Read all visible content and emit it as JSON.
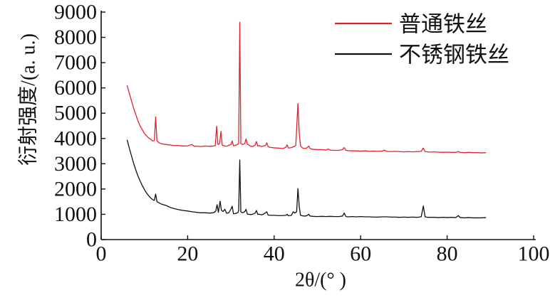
{
  "chart_data": {
    "type": "line",
    "xlabel": "2θ/(° )",
    "ylabel": "衍射强度/(a. u.)",
    "xlim": [
      0,
      100
    ],
    "ylim": [
      0,
      9000
    ],
    "xticks": [
      0,
      20,
      40,
      60,
      80,
      100
    ],
    "yticks": [
      0,
      1000,
      2000,
      3000,
      4000,
      5000,
      6000,
      7000,
      8000,
      9000
    ],
    "grid": false,
    "legend": "top-right",
    "series": [
      {
        "name": "普通铁丝",
        "color": "#e3222c",
        "points": [
          [
            6.0,
            6100
          ],
          [
            6.5,
            5800
          ],
          [
            7.0,
            5500
          ],
          [
            7.5,
            5200
          ],
          [
            8.0,
            4950
          ],
          [
            8.5,
            4700
          ],
          [
            9.0,
            4500
          ],
          [
            9.5,
            4350
          ],
          [
            10.0,
            4200
          ],
          [
            10.5,
            4100
          ],
          [
            11.0,
            4020
          ],
          [
            11.5,
            3960
          ],
          [
            12.0,
            3900
          ],
          [
            12.3,
            3920
          ],
          [
            12.6,
            4850
          ],
          [
            12.9,
            3900
          ],
          [
            13.5,
            3820
          ],
          [
            14.0,
            3790
          ],
          [
            15.0,
            3760
          ],
          [
            16.0,
            3740
          ],
          [
            17.0,
            3720
          ],
          [
            18.0,
            3720
          ],
          [
            19.0,
            3700
          ],
          [
            20.0,
            3710
          ],
          [
            21.0,
            3760
          ],
          [
            21.5,
            3690
          ],
          [
            22.0,
            3700
          ],
          [
            23.0,
            3680
          ],
          [
            24.0,
            3700
          ],
          [
            25.0,
            3690
          ],
          [
            26.0,
            3700
          ],
          [
            26.4,
            3720
          ],
          [
            26.7,
            4480
          ],
          [
            27.0,
            3760
          ],
          [
            27.4,
            3800
          ],
          [
            27.7,
            4280
          ],
          [
            28.0,
            3730
          ],
          [
            28.5,
            3710
          ],
          [
            29.0,
            3690
          ],
          [
            29.5,
            3730
          ],
          [
            30.0,
            3760
          ],
          [
            30.3,
            3900
          ],
          [
            30.6,
            3710
          ],
          [
            31.0,
            3730
          ],
          [
            31.5,
            3760
          ],
          [
            31.8,
            3800
          ],
          [
            32.05,
            8600
          ],
          [
            32.3,
            3800
          ],
          [
            32.7,
            3760
          ],
          [
            33.2,
            3800
          ],
          [
            33.5,
            3980
          ],
          [
            33.8,
            3780
          ],
          [
            34.5,
            3700
          ],
          [
            35.0,
            3680
          ],
          [
            35.6,
            3740
          ],
          [
            35.9,
            3880
          ],
          [
            36.2,
            3700
          ],
          [
            36.6,
            3720
          ],
          [
            37.0,
            3680
          ],
          [
            37.5,
            3700
          ],
          [
            38.0,
            3720
          ],
          [
            38.3,
            3830
          ],
          [
            38.6,
            3680
          ],
          [
            39.0,
            3650
          ],
          [
            40.0,
            3630
          ],
          [
            41.0,
            3620
          ],
          [
            42.0,
            3600
          ],
          [
            42.7,
            3650
          ],
          [
            43.0,
            3750
          ],
          [
            43.3,
            3620
          ],
          [
            44.0,
            3640
          ],
          [
            44.6,
            3680
          ],
          [
            45.0,
            3720
          ],
          [
            45.5,
            5380
          ],
          [
            45.8,
            4200
          ],
          [
            46.1,
            3700
          ],
          [
            46.6,
            3620
          ],
          [
            47.0,
            3600
          ],
          [
            47.5,
            3620
          ],
          [
            48.0,
            3700
          ],
          [
            48.3,
            3600
          ],
          [
            49.0,
            3570
          ],
          [
            50.0,
            3560
          ],
          [
            51.0,
            3560
          ],
          [
            52.0,
            3540
          ],
          [
            52.5,
            3580
          ],
          [
            53.0,
            3540
          ],
          [
            54.0,
            3530
          ],
          [
            55.0,
            3530
          ],
          [
            55.8,
            3560
          ],
          [
            56.2,
            3640
          ],
          [
            56.6,
            3530
          ],
          [
            57.0,
            3520
          ],
          [
            58.0,
            3510
          ],
          [
            59.0,
            3510
          ],
          [
            60.0,
            3500
          ],
          [
            61.0,
            3510
          ],
          [
            62.0,
            3490
          ],
          [
            63.0,
            3500
          ],
          [
            64.0,
            3490
          ],
          [
            65.0,
            3500
          ],
          [
            65.5,
            3540
          ],
          [
            66.0,
            3490
          ],
          [
            67.0,
            3480
          ],
          [
            68.0,
            3490
          ],
          [
            69.0,
            3480
          ],
          [
            70.0,
            3470
          ],
          [
            71.0,
            3480
          ],
          [
            72.0,
            3470
          ],
          [
            73.0,
            3480
          ],
          [
            74.0,
            3490
          ],
          [
            74.5,
            3620
          ],
          [
            74.9,
            3480
          ],
          [
            75.5,
            3470
          ],
          [
            76.0,
            3460
          ],
          [
            77.0,
            3470
          ],
          [
            78.0,
            3460
          ],
          [
            79.0,
            3450
          ],
          [
            80.0,
            3460
          ],
          [
            81.0,
            3450
          ],
          [
            82.0,
            3450
          ],
          [
            82.6,
            3480
          ],
          [
            83.0,
            3450
          ],
          [
            84.0,
            3440
          ],
          [
            85.0,
            3450
          ],
          [
            86.0,
            3440
          ],
          [
            87.0,
            3440
          ],
          [
            88.0,
            3430
          ],
          [
            89.0,
            3440
          ]
        ]
      },
      {
        "name": "不锈钢铁丝",
        "color": "#111111",
        "points": [
          [
            6.0,
            3950
          ],
          [
            6.5,
            3620
          ],
          [
            7.0,
            3320
          ],
          [
            7.5,
            3020
          ],
          [
            8.0,
            2760
          ],
          [
            8.5,
            2520
          ],
          [
            9.0,
            2320
          ],
          [
            9.5,
            2140
          ],
          [
            10.0,
            1980
          ],
          [
            10.5,
            1840
          ],
          [
            11.0,
            1730
          ],
          [
            11.5,
            1640
          ],
          [
            12.0,
            1570
          ],
          [
            12.3,
            1550
          ],
          [
            12.6,
            1800
          ],
          [
            12.9,
            1500
          ],
          [
            13.5,
            1440
          ],
          [
            14.0,
            1400
          ],
          [
            15.0,
            1350
          ],
          [
            16.0,
            1270
          ],
          [
            17.0,
            1220
          ],
          [
            18.0,
            1180
          ],
          [
            19.0,
            1150
          ],
          [
            20.0,
            1130
          ],
          [
            21.0,
            1100
          ],
          [
            22.0,
            1080
          ],
          [
            23.0,
            1060
          ],
          [
            24.0,
            1060
          ],
          [
            25.0,
            1050
          ],
          [
            26.0,
            1060
          ],
          [
            26.5,
            1130
          ],
          [
            26.8,
            1380
          ],
          [
            27.1,
            1080
          ],
          [
            27.5,
            1520
          ],
          [
            27.8,
            1160
          ],
          [
            28.2,
            1110
          ],
          [
            28.6,
            1200
          ],
          [
            29.0,
            1040
          ],
          [
            29.5,
            1060
          ],
          [
            30.0,
            1200
          ],
          [
            30.3,
            1320
          ],
          [
            30.6,
            1020
          ],
          [
            31.0,
            1030
          ],
          [
            31.6,
            1060
          ],
          [
            31.8,
            1150
          ],
          [
            32.05,
            3150
          ],
          [
            32.3,
            1100
          ],
          [
            32.7,
            1060
          ],
          [
            33.2,
            1100
          ],
          [
            33.5,
            1200
          ],
          [
            33.8,
            1010
          ],
          [
            34.5,
            990
          ],
          [
            35.0,
            1000
          ],
          [
            35.6,
            1050
          ],
          [
            35.9,
            1150
          ],
          [
            36.2,
            1000
          ],
          [
            36.6,
            1000
          ],
          [
            37.0,
            980
          ],
          [
            37.5,
            1000
          ],
          [
            38.0,
            1060
          ],
          [
            38.3,
            1100
          ],
          [
            38.6,
            970
          ],
          [
            39.0,
            960
          ],
          [
            40.0,
            960
          ],
          [
            41.0,
            950
          ],
          [
            42.0,
            950
          ],
          [
            42.7,
            960
          ],
          [
            43.0,
            1000
          ],
          [
            43.3,
            940
          ],
          [
            44.0,
            960
          ],
          [
            44.4,
            1100
          ],
          [
            44.8,
            1050
          ],
          [
            45.2,
            1100
          ],
          [
            45.5,
            2020
          ],
          [
            45.8,
            1300
          ],
          [
            46.1,
            960
          ],
          [
            46.6,
            940
          ],
          [
            47.0,
            930
          ],
          [
            47.5,
            940
          ],
          [
            48.0,
            1000
          ],
          [
            48.3,
            930
          ],
          [
            49.0,
            920
          ],
          [
            50.0,
            910
          ],
          [
            51.0,
            920
          ],
          [
            52.0,
            910
          ],
          [
            53.0,
            920
          ],
          [
            54.0,
            910
          ],
          [
            55.0,
            910
          ],
          [
            55.8,
            930
          ],
          [
            56.2,
            1050
          ],
          [
            56.6,
            910
          ],
          [
            57.0,
            900
          ],
          [
            58.0,
            910
          ],
          [
            59.0,
            900
          ],
          [
            60.0,
            910
          ],
          [
            61.0,
            900
          ],
          [
            62.0,
            900
          ],
          [
            63.0,
            890
          ],
          [
            64.0,
            890
          ],
          [
            65.0,
            900
          ],
          [
            66.0,
            900
          ],
          [
            67.0,
            890
          ],
          [
            68.0,
            890
          ],
          [
            69.0,
            880
          ],
          [
            70.0,
            890
          ],
          [
            71.0,
            880
          ],
          [
            72.0,
            890
          ],
          [
            73.0,
            880
          ],
          [
            74.0,
            900
          ],
          [
            74.5,
            1330
          ],
          [
            74.9,
            900
          ],
          [
            75.5,
            880
          ],
          [
            76.0,
            880
          ],
          [
            77.0,
            880
          ],
          [
            78.0,
            870
          ],
          [
            79.0,
            880
          ],
          [
            80.0,
            870
          ],
          [
            81.0,
            880
          ],
          [
            82.0,
            870
          ],
          [
            82.6,
            950
          ],
          [
            83.0,
            870
          ],
          [
            84.0,
            860
          ],
          [
            85.0,
            870
          ],
          [
            86.0,
            860
          ],
          [
            87.0,
            860
          ],
          [
            88.0,
            860
          ],
          [
            89.0,
            870
          ]
        ]
      }
    ]
  }
}
